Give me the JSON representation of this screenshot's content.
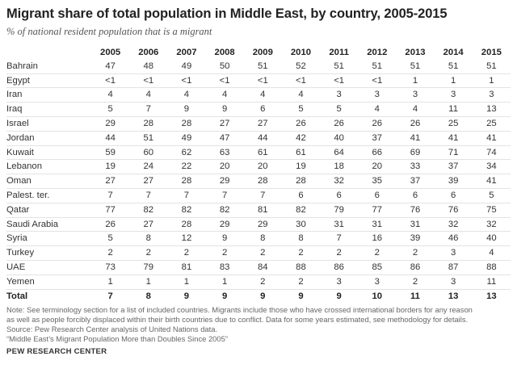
{
  "chart_data": {
    "type": "table",
    "title": "Migrant share of total population in Middle East, by country, 2005-2015",
    "subtitle": "% of national resident population that is a migrant",
    "columns": [
      "2005",
      "2006",
      "2007",
      "2008",
      "2009",
      "2010",
      "2011",
      "2012",
      "2013",
      "2014",
      "2015"
    ],
    "rows": [
      {
        "country": "Bahrain",
        "values": [
          "47",
          "48",
          "49",
          "50",
          "51",
          "52",
          "51",
          "51",
          "51",
          "51",
          "51"
        ]
      },
      {
        "country": "Egypt",
        "values": [
          "<1",
          "<1",
          "<1",
          "<1",
          "<1",
          "<1",
          "<1",
          "<1",
          "1",
          "1",
          "1"
        ]
      },
      {
        "country": "Iran",
        "values": [
          "4",
          "4",
          "4",
          "4",
          "4",
          "4",
          "3",
          "3",
          "3",
          "3",
          "3"
        ]
      },
      {
        "country": "Iraq",
        "values": [
          "5",
          "7",
          "9",
          "9",
          "6",
          "5",
          "5",
          "4",
          "4",
          "11",
          "13"
        ]
      },
      {
        "country": "Israel",
        "values": [
          "29",
          "28",
          "28",
          "27",
          "27",
          "26",
          "26",
          "26",
          "26",
          "25",
          "25"
        ]
      },
      {
        "country": "Jordan",
        "values": [
          "44",
          "51",
          "49",
          "47",
          "44",
          "42",
          "40",
          "37",
          "41",
          "41",
          "41"
        ]
      },
      {
        "country": "Kuwait",
        "values": [
          "59",
          "60",
          "62",
          "63",
          "61",
          "61",
          "64",
          "66",
          "69",
          "71",
          "74"
        ]
      },
      {
        "country": "Lebanon",
        "values": [
          "19",
          "24",
          "22",
          "20",
          "20",
          "19",
          "18",
          "20",
          "33",
          "37",
          "34"
        ]
      },
      {
        "country": "Oman",
        "values": [
          "27",
          "27",
          "28",
          "29",
          "28",
          "28",
          "32",
          "35",
          "37",
          "39",
          "41"
        ]
      },
      {
        "country": "Palest. ter.",
        "values": [
          "7",
          "7",
          "7",
          "7",
          "7",
          "6",
          "6",
          "6",
          "6",
          "6",
          "5"
        ]
      },
      {
        "country": "Qatar",
        "values": [
          "77",
          "82",
          "82",
          "82",
          "81",
          "82",
          "79",
          "77",
          "76",
          "76",
          "75"
        ]
      },
      {
        "country": "Saudi Arabia",
        "values": [
          "26",
          "27",
          "28",
          "29",
          "29",
          "30",
          "31",
          "31",
          "31",
          "32",
          "32"
        ]
      },
      {
        "country": "Syria",
        "values": [
          "5",
          "8",
          "12",
          "9",
          "8",
          "8",
          "7",
          "16",
          "39",
          "46",
          "40"
        ]
      },
      {
        "country": "Turkey",
        "values": [
          "2",
          "2",
          "2",
          "2",
          "2",
          "2",
          "2",
          "2",
          "2",
          "3",
          "4"
        ]
      },
      {
        "country": "UAE",
        "values": [
          "73",
          "79",
          "81",
          "83",
          "84",
          "88",
          "86",
          "85",
          "86",
          "87",
          "88"
        ]
      },
      {
        "country": "Yemen",
        "values": [
          "1",
          "1",
          "1",
          "1",
          "2",
          "2",
          "3",
          "3",
          "2",
          "3",
          "11"
        ]
      }
    ],
    "total": {
      "country": "Total",
      "values": [
        "7",
        "8",
        "9",
        "9",
        "9",
        "9",
        "9",
        "10",
        "11",
        "13",
        "13"
      ]
    }
  },
  "notes": {
    "line1": "Note: See terminology section for a list of included countries. Migrants include those who have crossed international borders for any reason",
    "line2": "as well as people forcibly displaced within their birth countries due to conflict. Data for some years estimated, see methodology for details.",
    "source": "Source: Pew Research Center analysis of United Nations data.",
    "report": "“Middle East’s Migrant Population More than Doubles Since 2005”"
  },
  "brand": "PEW RESEARCH CENTER"
}
